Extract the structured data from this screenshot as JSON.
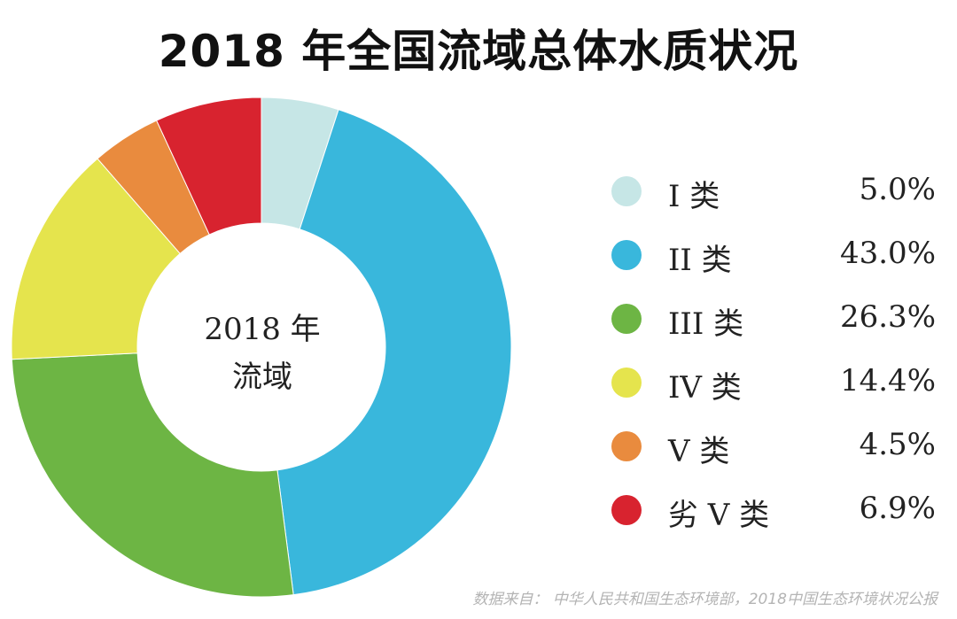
{
  "chart_data": {
    "type": "pie",
    "title": "2018 年全国流域总体水质状况",
    "center_label": [
      "2018 年",
      "流域"
    ],
    "categories": [
      "I 类",
      "II 类",
      "III 类",
      "IV 类",
      "V 类",
      "劣 V 类"
    ],
    "values": [
      5.0,
      43.0,
      26.3,
      14.4,
      4.5,
      6.9
    ],
    "value_labels": [
      "5.0%",
      "43.0%",
      "26.3%",
      "14.4%",
      "4.5%",
      "6.9%"
    ],
    "unit": "%",
    "colors": [
      "#c6e6e6",
      "#39b7dc",
      "#6db544",
      "#e5e44d",
      "#e98b3e",
      "#d8232f"
    ],
    "donut": true,
    "start": "12 o'clock",
    "direction": "clockwise",
    "legend_position": "right"
  },
  "source": "数据来自：  中华人民共和国生态环境部，2018中国生态环境状况公报"
}
